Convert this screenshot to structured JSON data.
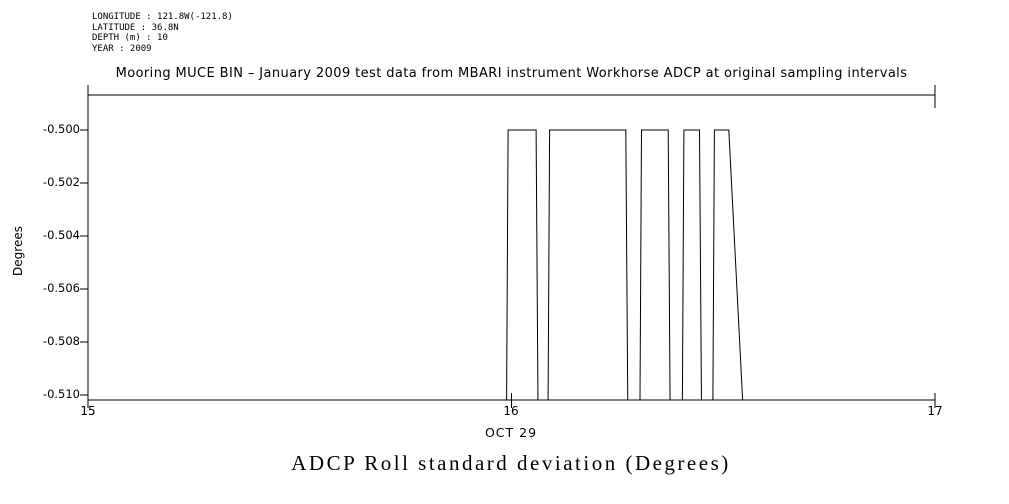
{
  "meta": {
    "lines": [
      "LONGITUDE : 121.8W(-121.8)",
      "LATITUDE : 36.8N",
      "DEPTH (m) : 10",
      "YEAR : 2009"
    ]
  },
  "footer_title": "ADCP Roll standard deviation (Degrees)",
  "chart_data": {
    "type": "line",
    "title": "Mooring MUCE BIN – January 2009 test data from MBARI instrument Workhorse ADCP at original sampling intervals",
    "xlabel": "OCT 29",
    "ylabel": "Degrees",
    "xlim": [
      15,
      17
    ],
    "ylim": [
      -0.51,
      -0.5
    ],
    "xtick_labels": [
      "15",
      "16",
      "17"
    ],
    "xtick_values": [
      15,
      16,
      17
    ],
    "ytick_labels": [
      "-0.500",
      "-0.502",
      "-0.504",
      "-0.506",
      "-0.508",
      "-0.510"
    ],
    "ytick_values": [
      -0.5,
      -0.502,
      -0.504,
      -0.506,
      -0.508,
      -0.51
    ],
    "grid": false,
    "legend": false,
    "series": [
      {
        "name": "ADCP Roll standard deviation",
        "high_level": -0.5,
        "low_level_clipped": -0.5115,
        "points": [
          [
            15.988,
            -0.5115
          ],
          [
            15.992,
            -0.5
          ],
          [
            16.058,
            -0.5
          ],
          [
            16.063,
            -0.5115
          ],
          [
            16.086,
            -0.5115
          ],
          [
            16.09,
            -0.5
          ],
          [
            16.27,
            -0.5
          ],
          [
            16.275,
            -0.5115
          ],
          [
            16.303,
            -0.5115
          ],
          [
            16.307,
            -0.5
          ],
          [
            16.37,
            -0.5
          ],
          [
            16.375,
            -0.5115
          ],
          [
            16.403,
            -0.5115
          ],
          [
            16.407,
            -0.5
          ],
          [
            16.444,
            -0.5
          ],
          [
            16.449,
            -0.5115
          ],
          [
            16.475,
            -0.5115
          ],
          [
            16.479,
            -0.5
          ],
          [
            16.513,
            -0.5
          ],
          [
            16.55,
            -0.5115
          ]
        ]
      }
    ]
  }
}
